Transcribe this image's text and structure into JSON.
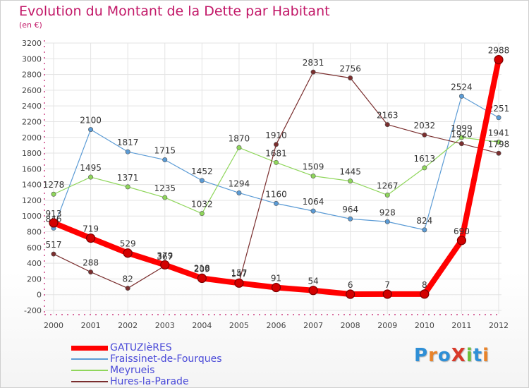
{
  "title": "Evolution du Montant de la Dette par Habitant",
  "unit": "(en €)",
  "logo": {
    "text": "ProXiti",
    "colors": [
      "#2f8fd6",
      "#e8832a",
      "#2f8fd6",
      "#d83a2a",
      "#6cbf3a",
      "#2f8fd6",
      "#e8832a"
    ]
  },
  "colors": {
    "title": "#c21868",
    "axis": "#c21868",
    "grid": "#e3e3e3",
    "legend_text": "#4a4ad8",
    "label": "#333333"
  },
  "chart_data": {
    "type": "line",
    "x": [
      "2000",
      "2001",
      "2002",
      "2003",
      "2004",
      "2005",
      "2006",
      "2007",
      "2008",
      "2009",
      "2010",
      "2011",
      "2012"
    ],
    "ylim": [
      -200,
      3200
    ],
    "yticks": [
      -200,
      0,
      200,
      400,
      600,
      800,
      1000,
      1200,
      1400,
      1600,
      1800,
      2000,
      2200,
      2400,
      2600,
      2800,
      3000,
      3200
    ],
    "grid": true,
    "legend_position": "bottom-left",
    "series": [
      {
        "name": "GATUZIèRES",
        "color": "#ff0000",
        "values": [
          913,
          719,
          529,
          379,
          209,
          147,
          91,
          54,
          6,
          7,
          8,
          690,
          2988
        ],
        "emphasis": true
      },
      {
        "name": "Fraissinet-de-Fourques",
        "color": "#5b9bd5",
        "values": [
          846,
          2100,
          1817,
          1715,
          1452,
          1294,
          1160,
          1064,
          964,
          928,
          824,
          2524,
          2251
        ]
      },
      {
        "name": "Meyrueis",
        "color": "#8fd65b",
        "values": [
          1278,
          1495,
          1371,
          1235,
          1032,
          1870,
          1681,
          1509,
          1445,
          1267,
          1613,
          1999,
          1941
        ]
      },
      {
        "name": "Hures-la-Parade",
        "color": "#7a2e2e",
        "values": [
          517,
          288,
          82,
          367,
          218,
          157,
          1910,
          2831,
          2756,
          2163,
          2032,
          1920,
          1798
        ]
      }
    ]
  }
}
